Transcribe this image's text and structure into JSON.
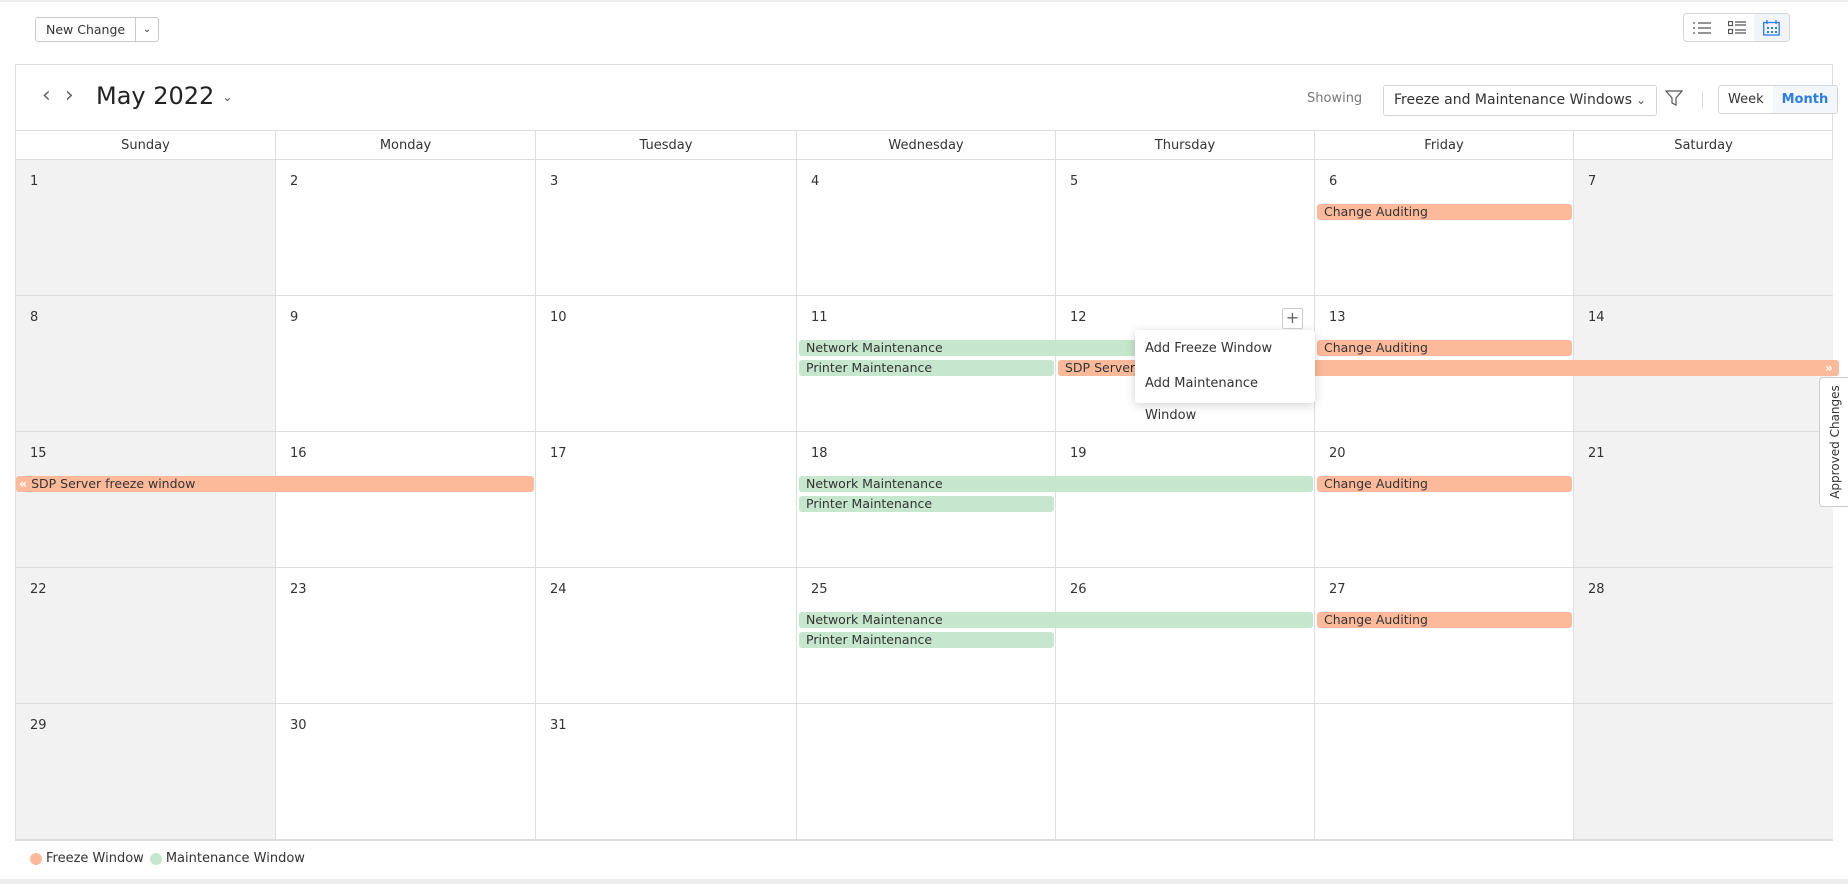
{
  "toolbar": {
    "new_change_label": "New Change",
    "view_icons": [
      "list-icon",
      "card-list-icon",
      "calendar-icon"
    ],
    "active_view": "calendar-icon"
  },
  "calendar": {
    "title": "May 2022",
    "showing_label": "Showing",
    "filter_value": "Freeze and Maintenance Windows",
    "view_week": "Week",
    "view_month": "Month",
    "active_view": "Month",
    "weekdays": [
      "Sunday",
      "Monday",
      "Tuesday",
      "Wednesday",
      "Thursday",
      "Friday",
      "Saturday"
    ],
    "weeks": [
      [
        "1",
        "2",
        "3",
        "4",
        "5",
        "6",
        "7"
      ],
      [
        "8",
        "9",
        "10",
        "11",
        "12",
        "13",
        "14"
      ],
      [
        "15",
        "16",
        "17",
        "18",
        "19",
        "20",
        "21"
      ],
      [
        "22",
        "23",
        "24",
        "25",
        "26",
        "27",
        "28"
      ],
      [
        "29",
        "30",
        "31",
        "",
        "",
        "",
        ""
      ]
    ],
    "events": [
      {
        "label": "Change Auditing",
        "type": "freeze",
        "week": 0,
        "start": 5,
        "end": 5,
        "slot": 0
      },
      {
        "label": "Network Maintenance",
        "type": "maintenance",
        "week": 1,
        "start": 3,
        "end": 4,
        "slot": 0
      },
      {
        "label": "Change Auditing",
        "type": "freeze",
        "week": 1,
        "start": 5,
        "end": 5,
        "slot": 0
      },
      {
        "label": "Printer Maintenance",
        "type": "maintenance",
        "week": 1,
        "start": 3,
        "end": 3,
        "slot": 1
      },
      {
        "label": "SDP Server freeze window",
        "type": "freeze",
        "week": 1,
        "start": 4,
        "end": 6,
        "slot": 1,
        "continues_after": true
      },
      {
        "label": "SDP Server freeze window",
        "type": "freeze",
        "week": 2,
        "start": 0,
        "end": 1,
        "slot": 0,
        "continues_before": true
      },
      {
        "label": "Network Maintenance",
        "type": "maintenance",
        "week": 2,
        "start": 3,
        "end": 4,
        "slot": 0
      },
      {
        "label": "Change Auditing",
        "type": "freeze",
        "week": 2,
        "start": 5,
        "end": 5,
        "slot": 0
      },
      {
        "label": "Printer Maintenance",
        "type": "maintenance",
        "week": 2,
        "start": 3,
        "end": 3,
        "slot": 1
      },
      {
        "label": "Network Maintenance",
        "type": "maintenance",
        "week": 3,
        "start": 3,
        "end": 4,
        "slot": 0
      },
      {
        "label": "Change Auditing",
        "type": "freeze",
        "week": 3,
        "start": 5,
        "end": 5,
        "slot": 0
      },
      {
        "label": "Printer Maintenance",
        "type": "maintenance",
        "week": 3,
        "start": 3,
        "end": 3,
        "slot": 1
      }
    ]
  },
  "popup": {
    "items": [
      "Add Freeze Window",
      "Add Maintenance Window"
    ]
  },
  "side_tab": {
    "label": "Approved Changes"
  },
  "legend": {
    "freeze": "Freeze Window",
    "maintenance": "Maintenance Window"
  },
  "colors": {
    "freeze": "#fdba9a",
    "maintenance": "#c6e7cd",
    "accent": "#2b7de9"
  }
}
